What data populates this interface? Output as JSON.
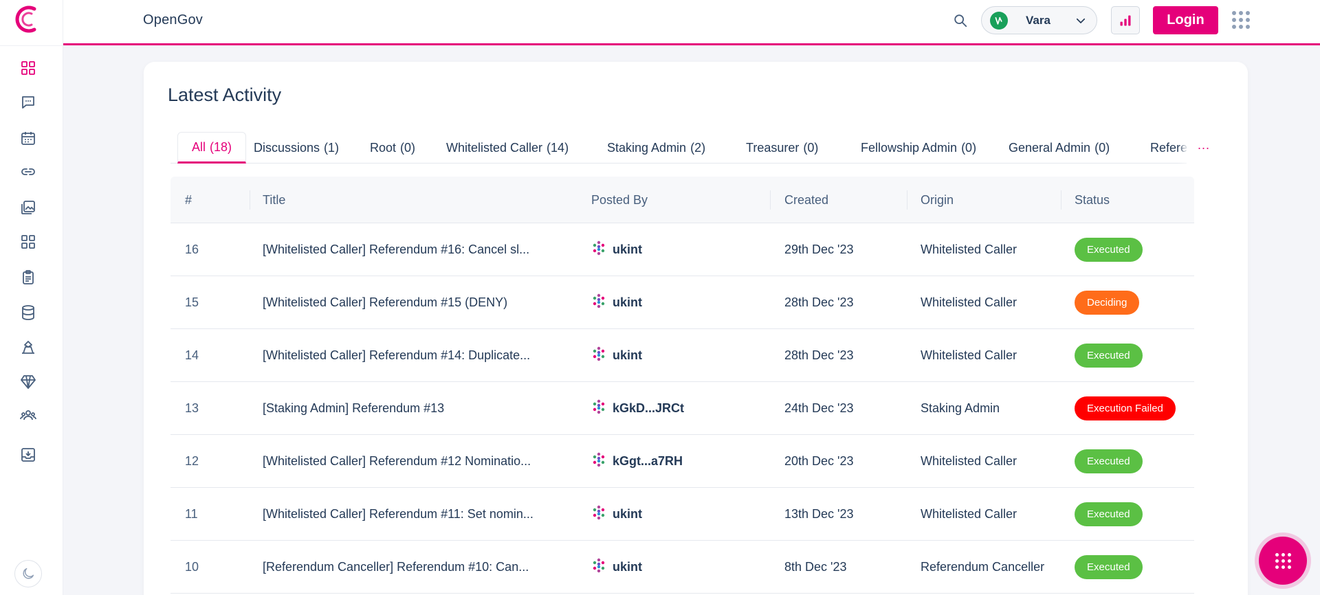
{
  "header": {
    "app_title": "OpenGov",
    "network": "Vara",
    "login_label": "Login"
  },
  "sidebar": {
    "items": [
      {
        "icon": "overview-grid-icon"
      },
      {
        "icon": "discussions-icon"
      },
      {
        "icon": "calendar-icon"
      },
      {
        "icon": "link-icon"
      },
      {
        "icon": "gallery-icon"
      },
      {
        "icon": "apps-grid-icon"
      },
      {
        "icon": "clipboard-icon"
      },
      {
        "icon": "database-icon"
      },
      {
        "icon": "treasury-icon"
      },
      {
        "icon": "diamond-icon"
      },
      {
        "icon": "members-icon"
      },
      {
        "icon": "archive-icon"
      }
    ]
  },
  "main": {
    "title": "Latest Activity",
    "tabs": [
      {
        "label": "All",
        "count": "(18)",
        "active": true
      },
      {
        "label": "Discussions",
        "count": "(1)"
      },
      {
        "label": "Root",
        "count": "(0)"
      },
      {
        "label": "Whitelisted Caller",
        "count": "(14)"
      },
      {
        "label": "Staking Admin",
        "count": "(2)"
      },
      {
        "label": "Treasurer",
        "count": "(0)"
      },
      {
        "label": "Fellowship Admin",
        "count": "(0)"
      },
      {
        "label": "General Admin",
        "count": "(0)"
      },
      {
        "label": "Referendum Canceller",
        "count": ""
      }
    ],
    "tabs_more": "···",
    "table": {
      "headers": [
        "#",
        "Title",
        "Posted By",
        "Created",
        "Origin",
        "Status"
      ],
      "rows": [
        {
          "num": "16",
          "title": "[Whitelisted Caller] Referendum #16: Cancel sl...",
          "posted_by": "ukint",
          "created": "29th Dec '23",
          "origin": "Whitelisted Caller",
          "status": "Executed"
        },
        {
          "num": "15",
          "title": "[Whitelisted Caller] Referendum #15 (DENY)",
          "posted_by": "ukint",
          "created": "28th Dec '23",
          "origin": "Whitelisted Caller",
          "status": "Deciding"
        },
        {
          "num": "14",
          "title": "[Whitelisted Caller] Referendum #14: Duplicate...",
          "posted_by": "ukint",
          "created": "28th Dec '23",
          "origin": "Whitelisted Caller",
          "status": "Executed"
        },
        {
          "num": "13",
          "title": "[Staking Admin] Referendum #13",
          "posted_by": "kGkD...JRCt",
          "created": "24th Dec '23",
          "origin": "Staking Admin",
          "status": "Execution Failed"
        },
        {
          "num": "12",
          "title": "[Whitelisted Caller] Referendum #12 Nominatio...",
          "posted_by": "kGgt...a7RH",
          "created": "20th Dec '23",
          "origin": "Whitelisted Caller",
          "status": "Executed"
        },
        {
          "num": "11",
          "title": "[Whitelisted Caller] Referendum #11: Set nomin...",
          "posted_by": "ukint",
          "created": "13th Dec '23",
          "origin": "Whitelisted Caller",
          "status": "Executed"
        },
        {
          "num": "10",
          "title": "[Referendum Canceller] Referendum #10: Can...",
          "posted_by": "ukint",
          "created": "8th Dec '23",
          "origin": "Referendum Canceller",
          "status": "Executed"
        }
      ]
    }
  },
  "colors": {
    "accent": "#e5007a",
    "executed": "#5bc044",
    "deciding": "#ff6c1a",
    "failed": "#ff0000"
  }
}
